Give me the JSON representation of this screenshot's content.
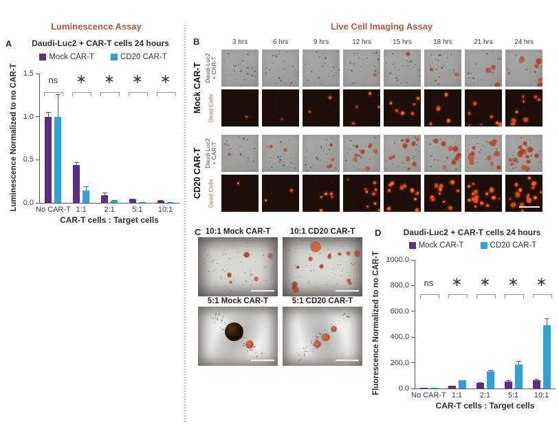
{
  "headers": {
    "left": "Luminescence Assay",
    "right": "Live Cell Imaging Assay"
  },
  "colors": {
    "mock_purple": "#5b2d86",
    "cd20_blue": "#2fa3d6",
    "accent_title": "#b4573e",
    "dead_cells_label": "#b5674c"
  },
  "panels": {
    "a": {
      "label": "A"
    },
    "b": {
      "label": "B"
    },
    "c": {
      "label": "C"
    },
    "d": {
      "label": "D"
    }
  },
  "chart_data": [
    {
      "panel": "A",
      "type": "bar",
      "title": "Daudi-Luc2 + CAR-T cells 24 hours",
      "categories": [
        "No CAR-T",
        "1:1",
        "2:1",
        "5:1",
        "10:1"
      ],
      "series": [
        {
          "name": "Mock CAR-T",
          "color": "#5b2d86",
          "values": [
            1.0,
            0.44,
            0.09,
            0.04,
            0.02
          ],
          "errors": [
            0.05,
            0.03,
            0.03,
            0.01,
            0.01
          ]
        },
        {
          "name": "CD20 CAR-T",
          "color": "#2fa3d6",
          "values": [
            1.0,
            0.14,
            0.02,
            0.01,
            0.005
          ],
          "errors": [
            0.26,
            0.05,
            0.01,
            0.005,
            0.003
          ]
        }
      ],
      "ylabel": "Luminescence Normalized to no CAR-T",
      "xlabel": "CAR-T cells : Target cells",
      "ylim": [
        0,
        1.5
      ],
      "yticks": [
        "0.0",
        "0.5",
        "1.0",
        "1.5"
      ],
      "significance": [
        "ns",
        "*",
        "*",
        "*",
        "*"
      ],
      "legend_position": "top",
      "grid": false
    },
    {
      "panel": "D",
      "type": "bar",
      "title": "Daudi-Luc2 + CAR-T cells 24 hours",
      "categories": [
        "No CAR-T",
        "1:1",
        "2:1",
        "5:1",
        "10:1"
      ],
      "series": [
        {
          "name": "Mock CAR-T",
          "color": "#5b2d86",
          "values": [
            2,
            20,
            42,
            52,
            65
          ],
          "errors": [
            2,
            4,
            8,
            12,
            10
          ]
        },
        {
          "name": "CD20 CAR-T",
          "color": "#2fa3d6",
          "values": [
            5,
            62,
            135,
            185,
            490
          ],
          "errors": [
            4,
            5,
            8,
            30,
            55
          ]
        }
      ],
      "ylabel": "Fluorescence Normalized to no CAR-T",
      "xlabel": "CAR-T cells : Target cells",
      "ylim": [
        0,
        1000
      ],
      "yticks": [
        "0.0",
        "200.0",
        "400.0",
        "600.0",
        "800.0",
        "1000.0"
      ],
      "significance": [
        "ns",
        "*",
        "*",
        "*",
        "*"
      ],
      "legend_position": "top",
      "grid": false
    }
  ],
  "panel_b": {
    "title": "Live Cell Imaging Assay",
    "timepoints": [
      "3 hrs",
      "6 hrs",
      "9 hrs",
      "12 hrs",
      "15 hrs",
      "18 hrs",
      "21 hrs",
      "24 hrs"
    ],
    "groups": [
      {
        "name": "Mock CAR-T",
        "rows": [
          {
            "label_lines": [
              "Daudi-Luc2",
              "+ CAR-T"
            ],
            "type": "overlay",
            "red_dots": [
              0,
              0,
              0,
              1,
              1,
              2,
              3,
              5
            ]
          },
          {
            "label_lines": [
              "Dead Cells"
            ],
            "type": "fluor",
            "red_dots": [
              1,
              1,
              2,
              4,
              6,
              5,
              7,
              9
            ]
          }
        ]
      },
      {
        "name": "CD20 CAR-T",
        "rows": [
          {
            "label_lines": [
              "Daudi-Luc2",
              "+ CAR-T"
            ],
            "type": "overlay",
            "red_dots": [
              1,
              2,
              4,
              9,
              10,
              10,
              14,
              14
            ]
          },
          {
            "label_lines": [
              "Dead Cells"
            ],
            "type": "fluor",
            "red_dots": [
              1,
              2,
              5,
              9,
              12,
              12,
              16,
              18
            ]
          }
        ]
      }
    ]
  },
  "panel_c": {
    "images": [
      {
        "title": "10:1 Mock CAR-T",
        "style": "field",
        "red_dots": 5,
        "bubble": false,
        "diagonal": "tl-br"
      },
      {
        "title": "10:1 CD20 CAR-T",
        "style": "field",
        "red_dots": 14,
        "bubble": false,
        "diagonal": "tl-br"
      },
      {
        "title": "5:1 Mock CAR-T",
        "style": "cluster",
        "red_dots": 3,
        "bubble": true,
        "diagonal": "tl-br"
      },
      {
        "title": "5:1 CD20 CAR-T",
        "style": "cluster",
        "red_dots": 3,
        "bubble": false,
        "diagonal": "tr-bl"
      }
    ]
  }
}
